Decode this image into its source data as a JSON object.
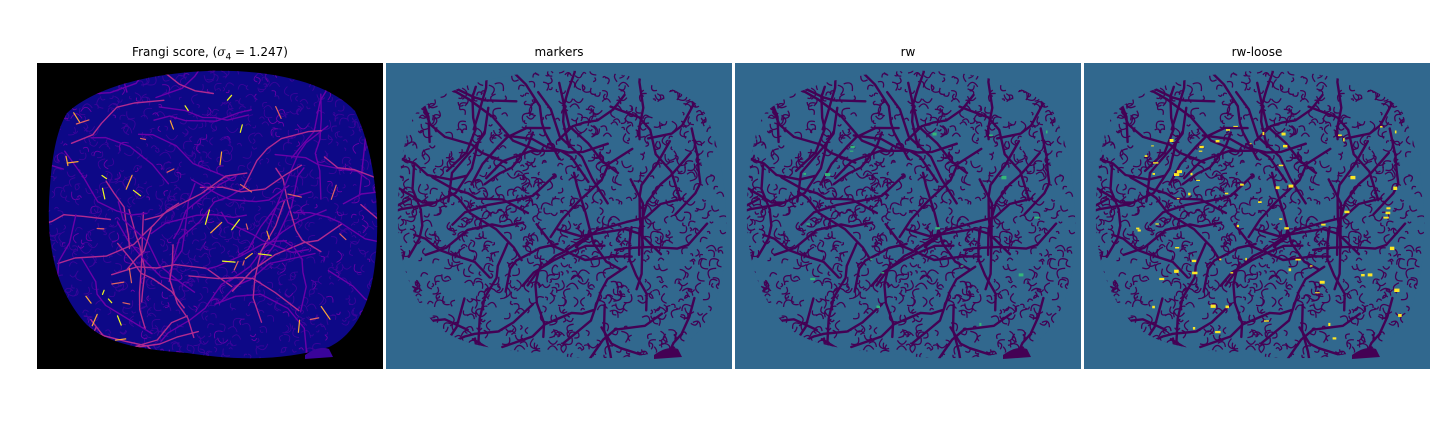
{
  "panels": [
    {
      "title_prefix": "Frangi score, (",
      "title_symbol": "σ",
      "title_subscript": "4",
      "title_suffix": " = 1.247)",
      "colormap": "plasma",
      "background": "#000000",
      "tissue_color": "#0d0887",
      "vessel_colors": [
        "#3a049a",
        "#6a00a8",
        "#b12a90",
        "#e16462",
        "#fca636",
        "#f0f921"
      ]
    },
    {
      "title": "markers",
      "colormap": "viridis",
      "background": "#31688e",
      "tissue_color": "#31688e",
      "vessel_color": "#440154",
      "highlight_color": "#35b779",
      "highlight_count": 0
    },
    {
      "title": "rw",
      "colormap": "viridis",
      "background": "#31688e",
      "tissue_color": "#31688e",
      "vessel_color": "#440154",
      "highlight_color": "#35b779",
      "highlight_count": 18
    },
    {
      "title": "rw-loose",
      "colormap": "viridis",
      "background": "#31688e",
      "tissue_color": "#31688e",
      "vessel_color": "#440154",
      "highlight_color": "#fde725",
      "highlight_count": 70
    }
  ]
}
